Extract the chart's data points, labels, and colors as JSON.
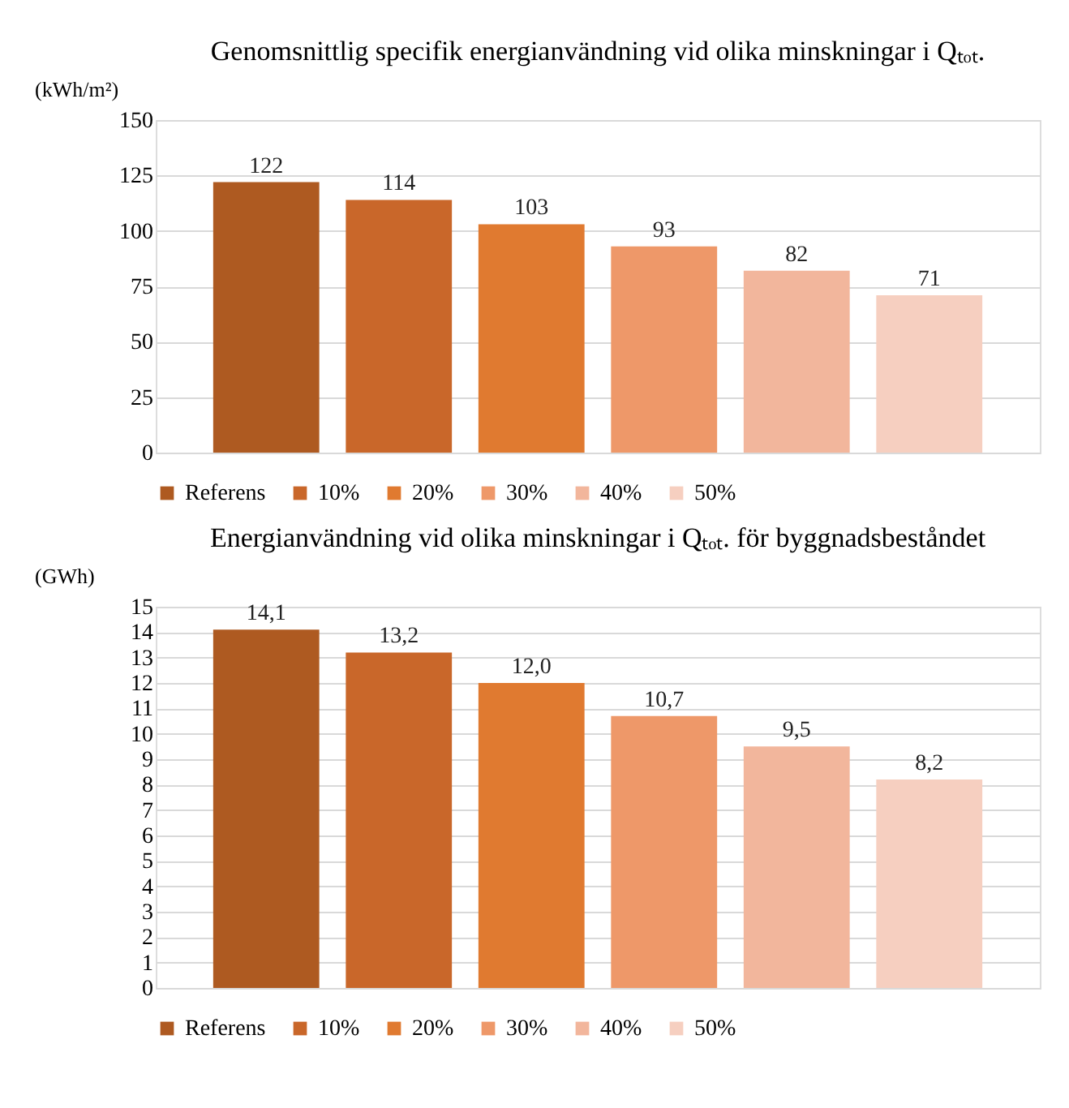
{
  "chart_data": [
    {
      "type": "bar",
      "title": "Genomsnittlig specifik energianvändning vid olika minskningar i Qₜₒₜ.",
      "ylabel": "(kWh/m²)",
      "categories": [
        null
      ],
      "series": [
        {
          "name": "Referens",
          "color": "#ae5a21",
          "values": [
            122
          ]
        },
        {
          "name": "10%",
          "color": "#c9672a",
          "values": [
            114
          ]
        },
        {
          "name": "20%",
          "color": "#e07a30",
          "values": [
            103
          ]
        },
        {
          "name": "30%",
          "color": "#ee9869",
          "values": [
            93
          ]
        },
        {
          "name": "40%",
          "color": "#f2b69c",
          "values": [
            82
          ]
        },
        {
          "name": "50%",
          "color": "#f6cfc0",
          "values": [
            71
          ]
        }
      ],
      "ylim": [
        0,
        150
      ],
      "yticks": [
        0,
        25,
        50,
        75,
        100,
        125,
        150
      ],
      "grid": "y",
      "legend": "bottom",
      "tick_labels": "y",
      "data_labels": true
    },
    {
      "type": "bar",
      "title": "Energianvändning vid olika minskningar i Qₜₒₜ. för byggnadsbeståndet",
      "ylabel": "(GWh)",
      "categories": [
        null
      ],
      "series": [
        {
          "name": "Referens",
          "color": "#ae5a21",
          "values": [
            14.1
          ],
          "value_labels": [
            "14,1"
          ]
        },
        {
          "name": "10%",
          "color": "#c9672a",
          "values": [
            13.2
          ],
          "value_labels": [
            "13,2"
          ]
        },
        {
          "name": "20%",
          "color": "#e07a30",
          "values": [
            12.0
          ],
          "value_labels": [
            "12,0"
          ]
        },
        {
          "name": "30%",
          "color": "#ee9869",
          "values": [
            10.7
          ],
          "value_labels": [
            "10,7"
          ]
        },
        {
          "name": "40%",
          "color": "#f2b69c",
          "values": [
            9.5
          ],
          "value_labels": [
            "9,5"
          ]
        },
        {
          "name": "50%",
          "color": "#f6cfc0",
          "values": [
            8.2
          ],
          "value_labels": [
            "8,2"
          ]
        }
      ],
      "ylim": [
        0,
        15
      ],
      "yticks": [
        0,
        1,
        2,
        3,
        4,
        5,
        6,
        7,
        8,
        9,
        10,
        11,
        12,
        13,
        14,
        15
      ],
      "grid": "y",
      "legend": "bottom",
      "tick_labels": "y"
    }
  ]
}
